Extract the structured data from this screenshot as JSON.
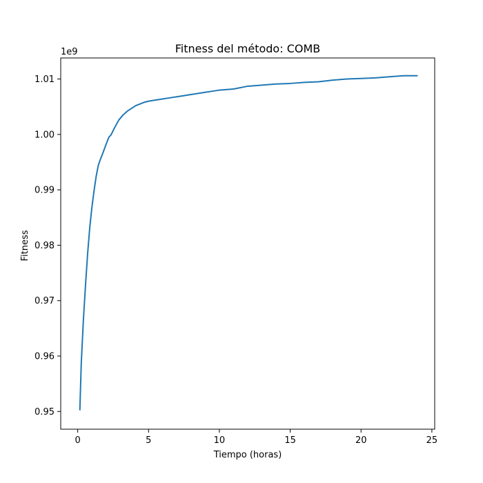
{
  "chart_data": {
    "type": "line",
    "title": "Fitness del método: COMB",
    "xlabel": "Tiempo (horas)",
    "ylabel": "Fitness",
    "y_offset_label": "1e9",
    "xlim": [
      -1.2,
      25.2
    ],
    "ylim": [
      0.9468,
      1.0138
    ],
    "x_ticks": [
      0,
      5,
      10,
      15,
      20,
      25
    ],
    "x_tick_labels": [
      "0",
      "5",
      "10",
      "15",
      "20",
      "25"
    ],
    "y_ticks": [
      0.95,
      0.96,
      0.97,
      0.98,
      0.99,
      1.0,
      1.01
    ],
    "y_tick_labels": [
      "0.95",
      "0.96",
      "0.97",
      "0.98",
      "0.99",
      "1.00",
      "1.01"
    ],
    "grid": false,
    "series": [
      {
        "color": "#1f77b4",
        "x": [
          0.15,
          0.25,
          0.4,
          0.55,
          0.7,
          0.85,
          1.0,
          1.15,
          1.3,
          1.45,
          1.6,
          1.8,
          2.0,
          2.2,
          2.35,
          2.6,
          2.9,
          3.2,
          3.5,
          3.8,
          4.1,
          4.4,
          4.7,
          5.0,
          5.5,
          6.0,
          6.5,
          7.0,
          7.5,
          8.0,
          8.5,
          9.0,
          9.5,
          10.0,
          11.0,
          12.0,
          13.0,
          14.0,
          15.0,
          16.0,
          17.0,
          18.0,
          19.0,
          20.0,
          21.0,
          22.0,
          23.0,
          24.0
        ],
        "y": [
          0.9502,
          0.9587,
          0.9665,
          0.9728,
          0.9785,
          0.9832,
          0.9868,
          0.9898,
          0.9924,
          0.9944,
          0.9955,
          0.9968,
          0.9982,
          0.9995,
          0.9999,
          1.0012,
          1.0026,
          1.0035,
          1.0042,
          1.0047,
          1.0052,
          1.0055,
          1.0058,
          1.006,
          1.0062,
          1.0064,
          1.0066,
          1.0068,
          1.007,
          1.0072,
          1.0074,
          1.0076,
          1.0078,
          1.008,
          1.0082,
          1.0087,
          1.0089,
          1.0091,
          1.0092,
          1.0094,
          1.0095,
          1.0098,
          1.01,
          1.0101,
          1.0102,
          1.0104,
          1.0106,
          1.0106
        ]
      }
    ]
  }
}
